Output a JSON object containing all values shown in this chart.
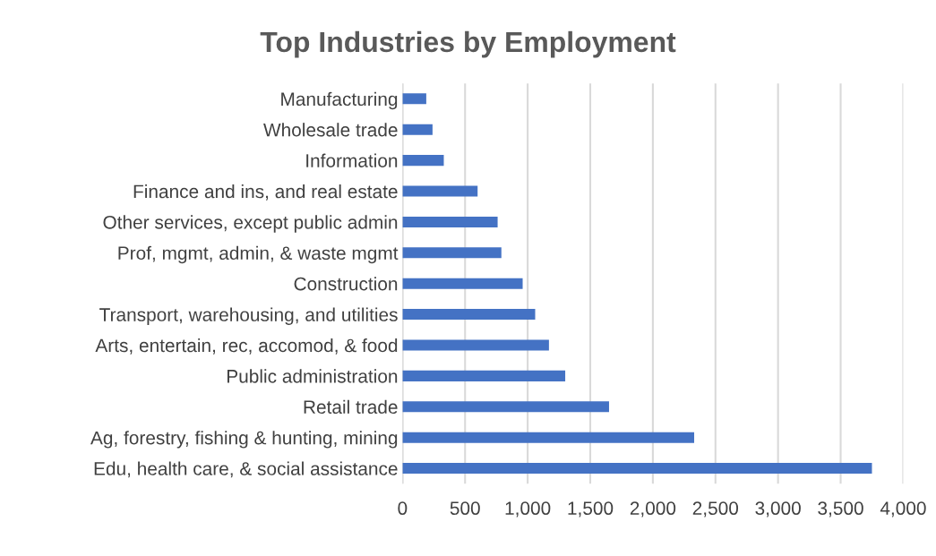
{
  "chart_data": {
    "type": "bar",
    "orientation": "horizontal",
    "title": "Top Industries by Employment",
    "categories": [
      "Manufacturing",
      "Wholesale trade",
      "Information",
      "Finance and ins, and real estate",
      "Other services, except public admin",
      "Prof, mgmt, admin, & waste mgmt",
      "Construction",
      "Transport, warehousing, and utilities",
      "Arts, entertain, rec, accomod, & food",
      "Public administration",
      "Retail trade",
      "Ag, forestry, fishing & hunting, mining",
      "Edu, health care, & social assistance"
    ],
    "values": [
      190,
      240,
      330,
      600,
      760,
      790,
      960,
      1060,
      1170,
      1300,
      1650,
      2330,
      3750
    ],
    "color": "#4472c4",
    "xlim": [
      0,
      4000
    ],
    "xticks": [
      0,
      {
        "value": 500,
        "label": "500"
      },
      {
        "value": 1000,
        "label": "1,000"
      },
      {
        "value": 1500,
        "label": "1,500"
      },
      {
        "value": 2000,
        "label": "2,000"
      },
      {
        "value": 2500,
        "label": "2,500"
      },
      {
        "value": 3000,
        "label": "3,000"
      },
      {
        "value": 3500,
        "label": "3,500"
      },
      {
        "value": 4000,
        "label": "4,000"
      }
    ],
    "grid": "x"
  }
}
